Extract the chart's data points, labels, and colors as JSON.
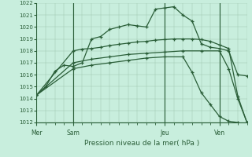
{
  "title": "Pression niveau de la mer( hPa )",
  "bg_color": "#c8eedd",
  "grid_color": "#a0c8b0",
  "line_color": "#2a5e38",
  "ylim": [
    1012,
    1022
  ],
  "yticks": [
    1012,
    1013,
    1014,
    1015,
    1016,
    1017,
    1018,
    1019,
    1020,
    1021,
    1022
  ],
  "day_labels": [
    "Mer",
    "Sam",
    "Jeu",
    "Ven"
  ],
  "vline_positions": [
    0,
    4,
    14,
    20
  ],
  "xlim": [
    0,
    23
  ],
  "series": [
    {
      "x": [
        0,
        1,
        2,
        3,
        4,
        5,
        6,
        7,
        8,
        9,
        10,
        11,
        12,
        13,
        14,
        15,
        16,
        17,
        18,
        19,
        20,
        21,
        22,
        23
      ],
      "y": [
        1014.3,
        1015.0,
        1016.3,
        1016.8,
        1016.7,
        1017.0,
        1019.0,
        1019.2,
        1019.8,
        1020.0,
        1020.2,
        1020.1,
        1020.0,
        1021.5,
        1021.6,
        1021.7,
        1021.0,
        1020.5,
        1018.6,
        1018.3,
        1018.2,
        1018.0,
        1016.0,
        1015.9
      ]
    },
    {
      "x": [
        0,
        4,
        5,
        6,
        7,
        8,
        9,
        10,
        11,
        12,
        13,
        14,
        15,
        16,
        17,
        18,
        19,
        20,
        21,
        22,
        23
      ],
      "y": [
        1014.3,
        1018.0,
        1018.15,
        1018.2,
        1018.3,
        1018.45,
        1018.55,
        1018.65,
        1018.75,
        1018.8,
        1018.9,
        1018.95,
        1019.0,
        1019.0,
        1019.0,
        1018.95,
        1018.8,
        1018.5,
        1018.2,
        1014.2,
        1012.0
      ]
    },
    {
      "x": [
        0,
        4,
        6,
        8,
        10,
        12,
        14,
        16,
        18,
        20,
        21,
        22,
        23
      ],
      "y": [
        1014.3,
        1017.0,
        1017.3,
        1017.5,
        1017.7,
        1017.8,
        1017.9,
        1018.0,
        1018.0,
        1018.0,
        1016.5,
        1014.0,
        1012.0
      ]
    },
    {
      "x": [
        0,
        4,
        6,
        8,
        10,
        12,
        14,
        16,
        17,
        18,
        19,
        20,
        21,
        22,
        23
      ],
      "y": [
        1014.3,
        1016.5,
        1016.8,
        1017.0,
        1017.2,
        1017.4,
        1017.5,
        1017.5,
        1016.2,
        1014.5,
        1013.5,
        1012.5,
        1012.1,
        1012.0,
        1011.8
      ]
    }
  ]
}
